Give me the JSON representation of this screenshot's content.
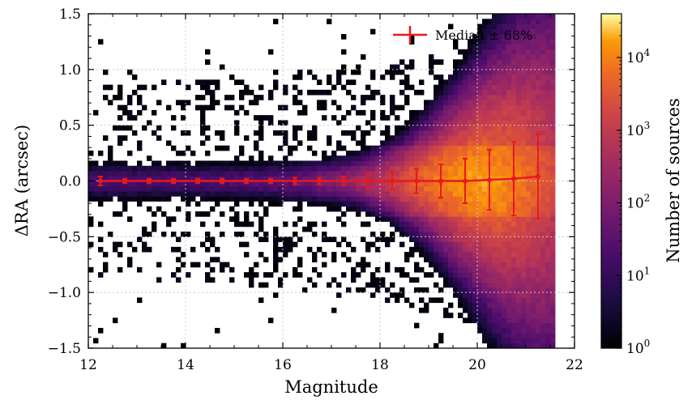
{
  "chart_data": {
    "type": "heatmap",
    "title": "",
    "xlabel": "Magnitude",
    "ylabel": "ΔRA (arcsec)",
    "xlim": [
      12,
      22
    ],
    "ylim": [
      -1.5,
      1.5
    ],
    "x_ticks": [
      "12",
      "14",
      "16",
      "18",
      "20",
      "22"
    ],
    "y_ticks": [
      "−1.5",
      "−1.0",
      "−0.5",
      "0.0",
      "0.5",
      "1.0",
      "1.5"
    ],
    "grid": true,
    "colormap": "inferno",
    "colorbar": {
      "label": "Number of sources",
      "scale": "log",
      "range": [
        1,
        40000
      ],
      "ticks": [
        {
          "base": "10",
          "exp": "0",
          "value": 1
        },
        {
          "base": "10",
          "exp": "1",
          "value": 10
        },
        {
          "base": "10",
          "exp": "2",
          "value": 100
        },
        {
          "base": "10",
          "exp": "3",
          "value": 1000
        },
        {
          "base": "10",
          "exp": "4",
          "value": 10000
        }
      ]
    },
    "legend": {
      "label": "Median ± 68%",
      "placement": "top-right"
    },
    "median_series": {
      "name": "Median ± 68%",
      "color": "#e8191c",
      "points": [
        {
          "x": 12.25,
          "y": 0.0,
          "err": 0.04
        },
        {
          "x": 12.75,
          "y": 0.0,
          "err": 0.02
        },
        {
          "x": 13.25,
          "y": 0.0,
          "err": 0.02
        },
        {
          "x": 13.75,
          "y": 0.0,
          "err": 0.02
        },
        {
          "x": 14.25,
          "y": 0.0,
          "err": 0.02
        },
        {
          "x": 14.75,
          "y": 0.0,
          "err": 0.02
        },
        {
          "x": 15.25,
          "y": 0.0,
          "err": 0.02
        },
        {
          "x": 15.75,
          "y": 0.0,
          "err": 0.02
        },
        {
          "x": 16.25,
          "y": 0.0,
          "err": 0.03
        },
        {
          "x": 16.75,
          "y": 0.0,
          "err": 0.03
        },
        {
          "x": 17.25,
          "y": 0.0,
          "err": 0.04
        },
        {
          "x": 17.75,
          "y": 0.0,
          "err": 0.06
        },
        {
          "x": 18.25,
          "y": 0.0,
          "err": 0.08
        },
        {
          "x": 18.75,
          "y": 0.0,
          "err": 0.11
        },
        {
          "x": 19.25,
          "y": 0.0,
          "err": 0.15
        },
        {
          "x": 19.75,
          "y": 0.0,
          "err": 0.2
        },
        {
          "x": 20.25,
          "y": 0.01,
          "err": 0.27
        },
        {
          "x": 20.75,
          "y": 0.02,
          "err": 0.33
        },
        {
          "x": 21.25,
          "y": 0.04,
          "err": 0.38
        }
      ]
    }
  }
}
